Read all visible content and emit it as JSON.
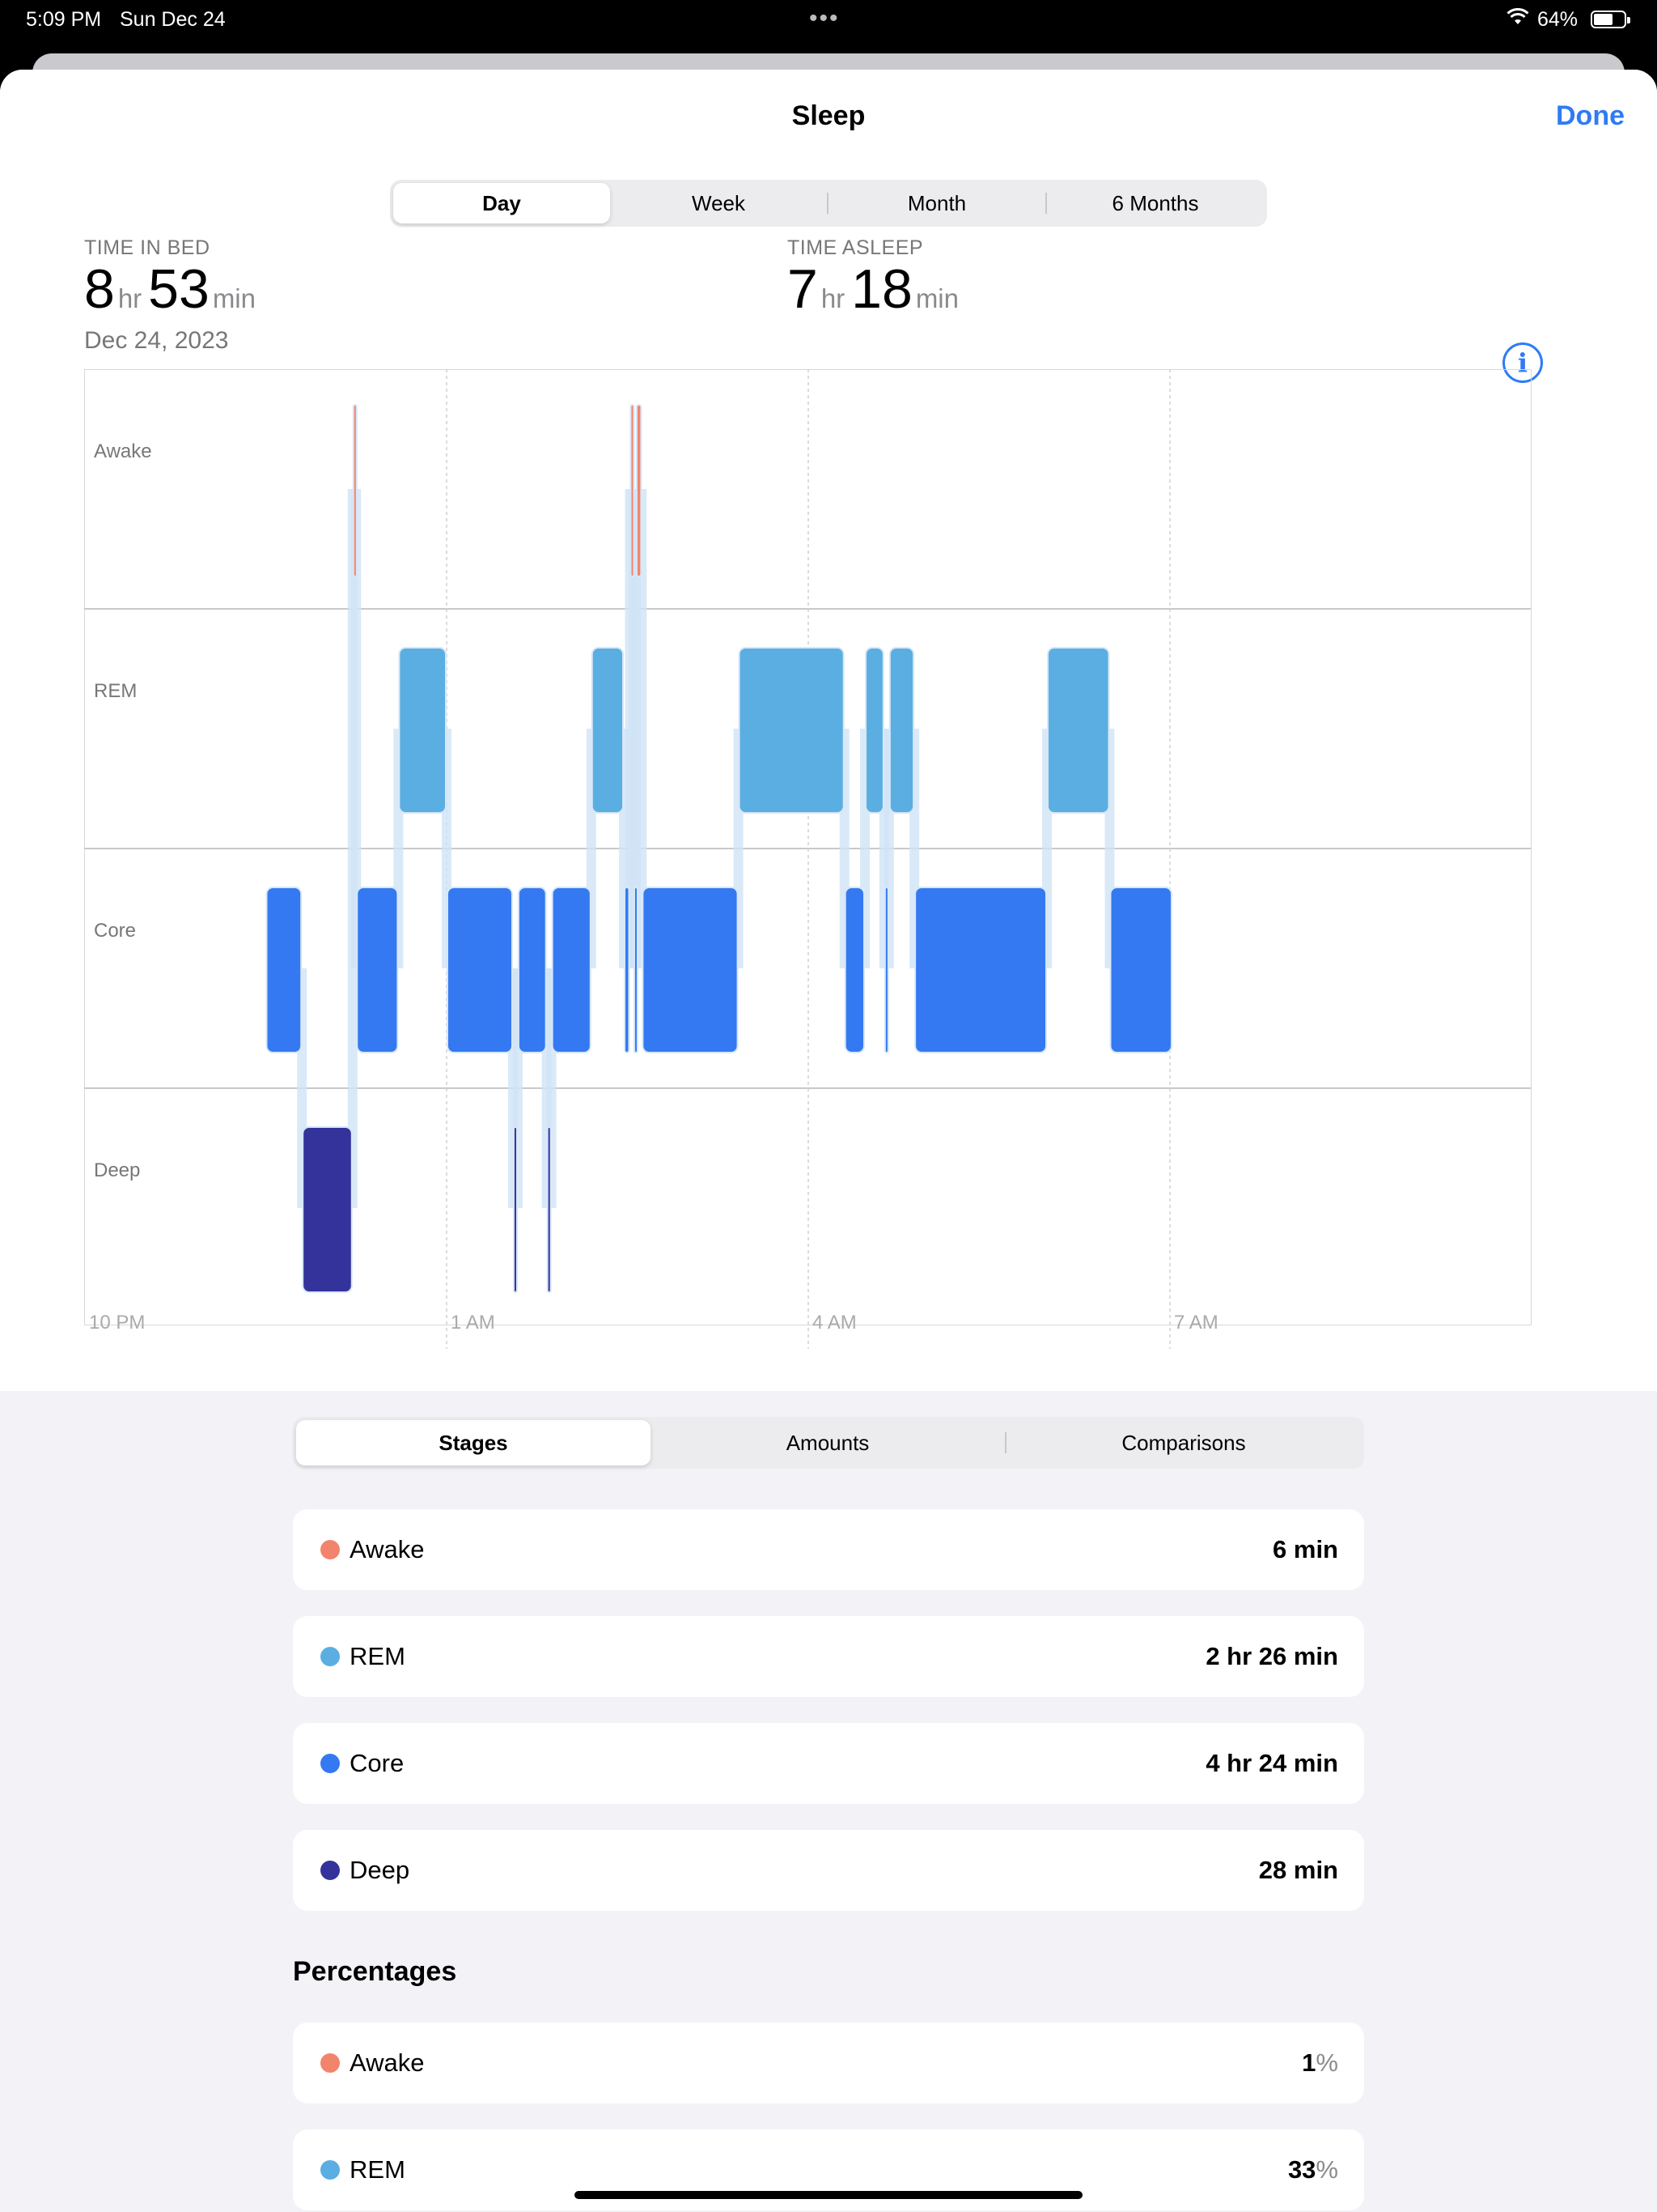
{
  "status_bar": {
    "time": "5:09 PM",
    "date": "Sun Dec 24",
    "battery": "64%",
    "battery_level": 0.64,
    "dots": "•••",
    "wifi_icon": "wifi-icon"
  },
  "nav": {
    "title": "Sleep",
    "done": "Done"
  },
  "range_tabs": [
    {
      "label": "Day",
      "selected": true
    },
    {
      "label": "Week",
      "selected": false
    },
    {
      "label": "Month",
      "selected": false
    },
    {
      "label": "6 Months",
      "selected": false
    }
  ],
  "summary": {
    "time_in_bed": {
      "label": "TIME IN BED",
      "hours": "8",
      "hr_unit": "hr",
      "minutes": "53",
      "min_unit": "min"
    },
    "time_asleep": {
      "label": "TIME ASLEEP",
      "hours": "7",
      "hr_unit": "hr",
      "minutes": "18",
      "min_unit": "min"
    },
    "date": "Dec 24, 2023",
    "info_icon": "info-icon"
  },
  "chart_data": {
    "type": "timeline",
    "stages": [
      "Awake",
      "REM",
      "Core",
      "Deep"
    ],
    "x_ticks": [
      "10 PM",
      "1 AM",
      "4 AM",
      "7 AM"
    ],
    "x_range_hours": [
      22,
      34
    ],
    "colors": {
      "Awake": "#f2846e",
      "REM": "#5aaee2",
      "Core": "#3479f1",
      "Deep": "#33339b"
    },
    "segments": [
      {
        "stage": "Core",
        "start": 23.5,
        "end": 23.8
      },
      {
        "stage": "Deep",
        "start": 23.8,
        "end": 24.22
      },
      {
        "stage": "Awake",
        "start": 24.22,
        "end": 24.25
      },
      {
        "stage": "Core",
        "start": 24.25,
        "end": 24.6
      },
      {
        "stage": "REM",
        "start": 24.6,
        "end": 25.0
      },
      {
        "stage": "Core",
        "start": 25.0,
        "end": 25.55
      },
      {
        "stage": "Deep",
        "start": 25.55,
        "end": 25.59
      },
      {
        "stage": "Core",
        "start": 25.59,
        "end": 25.83
      },
      {
        "stage": "Deep",
        "start": 25.83,
        "end": 25.87
      },
      {
        "stage": "Core",
        "start": 25.87,
        "end": 26.2
      },
      {
        "stage": "REM",
        "start": 26.2,
        "end": 26.47
      },
      {
        "stage": "Core",
        "start": 26.47,
        "end": 26.52
      },
      {
        "stage": "Awake",
        "start": 26.52,
        "end": 26.55
      },
      {
        "stage": "Core",
        "start": 26.55,
        "end": 26.57
      },
      {
        "stage": "Awake",
        "start": 26.57,
        "end": 26.62
      },
      {
        "stage": "Core",
        "start": 26.62,
        "end": 27.42
      },
      {
        "stage": "REM",
        "start": 27.42,
        "end": 28.3
      },
      {
        "stage": "Core",
        "start": 28.3,
        "end": 28.47
      },
      {
        "stage": "REM",
        "start": 28.47,
        "end": 28.63
      },
      {
        "stage": "Core",
        "start": 28.63,
        "end": 28.67
      },
      {
        "stage": "REM",
        "start": 28.67,
        "end": 28.88
      },
      {
        "stage": "Core",
        "start": 28.88,
        "end": 29.98
      },
      {
        "stage": "REM",
        "start": 29.98,
        "end": 30.5
      },
      {
        "stage": "Core",
        "start": 30.5,
        "end": 31.02
      }
    ]
  },
  "detail_tabs": [
    {
      "label": "Stages",
      "selected": true
    },
    {
      "label": "Amounts",
      "selected": false
    },
    {
      "label": "Comparisons",
      "selected": false
    }
  ],
  "stages_list": [
    {
      "label": "Awake",
      "value": "6 min",
      "color": "#f2846e"
    },
    {
      "label": "REM",
      "value": "2 hr 26 min",
      "color": "#5aaee2"
    },
    {
      "label": "Core",
      "value": "4 hr 24 min",
      "color": "#3479f1"
    },
    {
      "label": "Deep",
      "value": "28 min",
      "color": "#33339b"
    }
  ],
  "percentages_title": "Percentages",
  "percentages_list": [
    {
      "label": "Awake",
      "value": "1",
      "sign": "%",
      "color": "#f2846e"
    },
    {
      "label": "REM",
      "value": "33",
      "sign": "%",
      "color": "#5aaee2"
    }
  ]
}
